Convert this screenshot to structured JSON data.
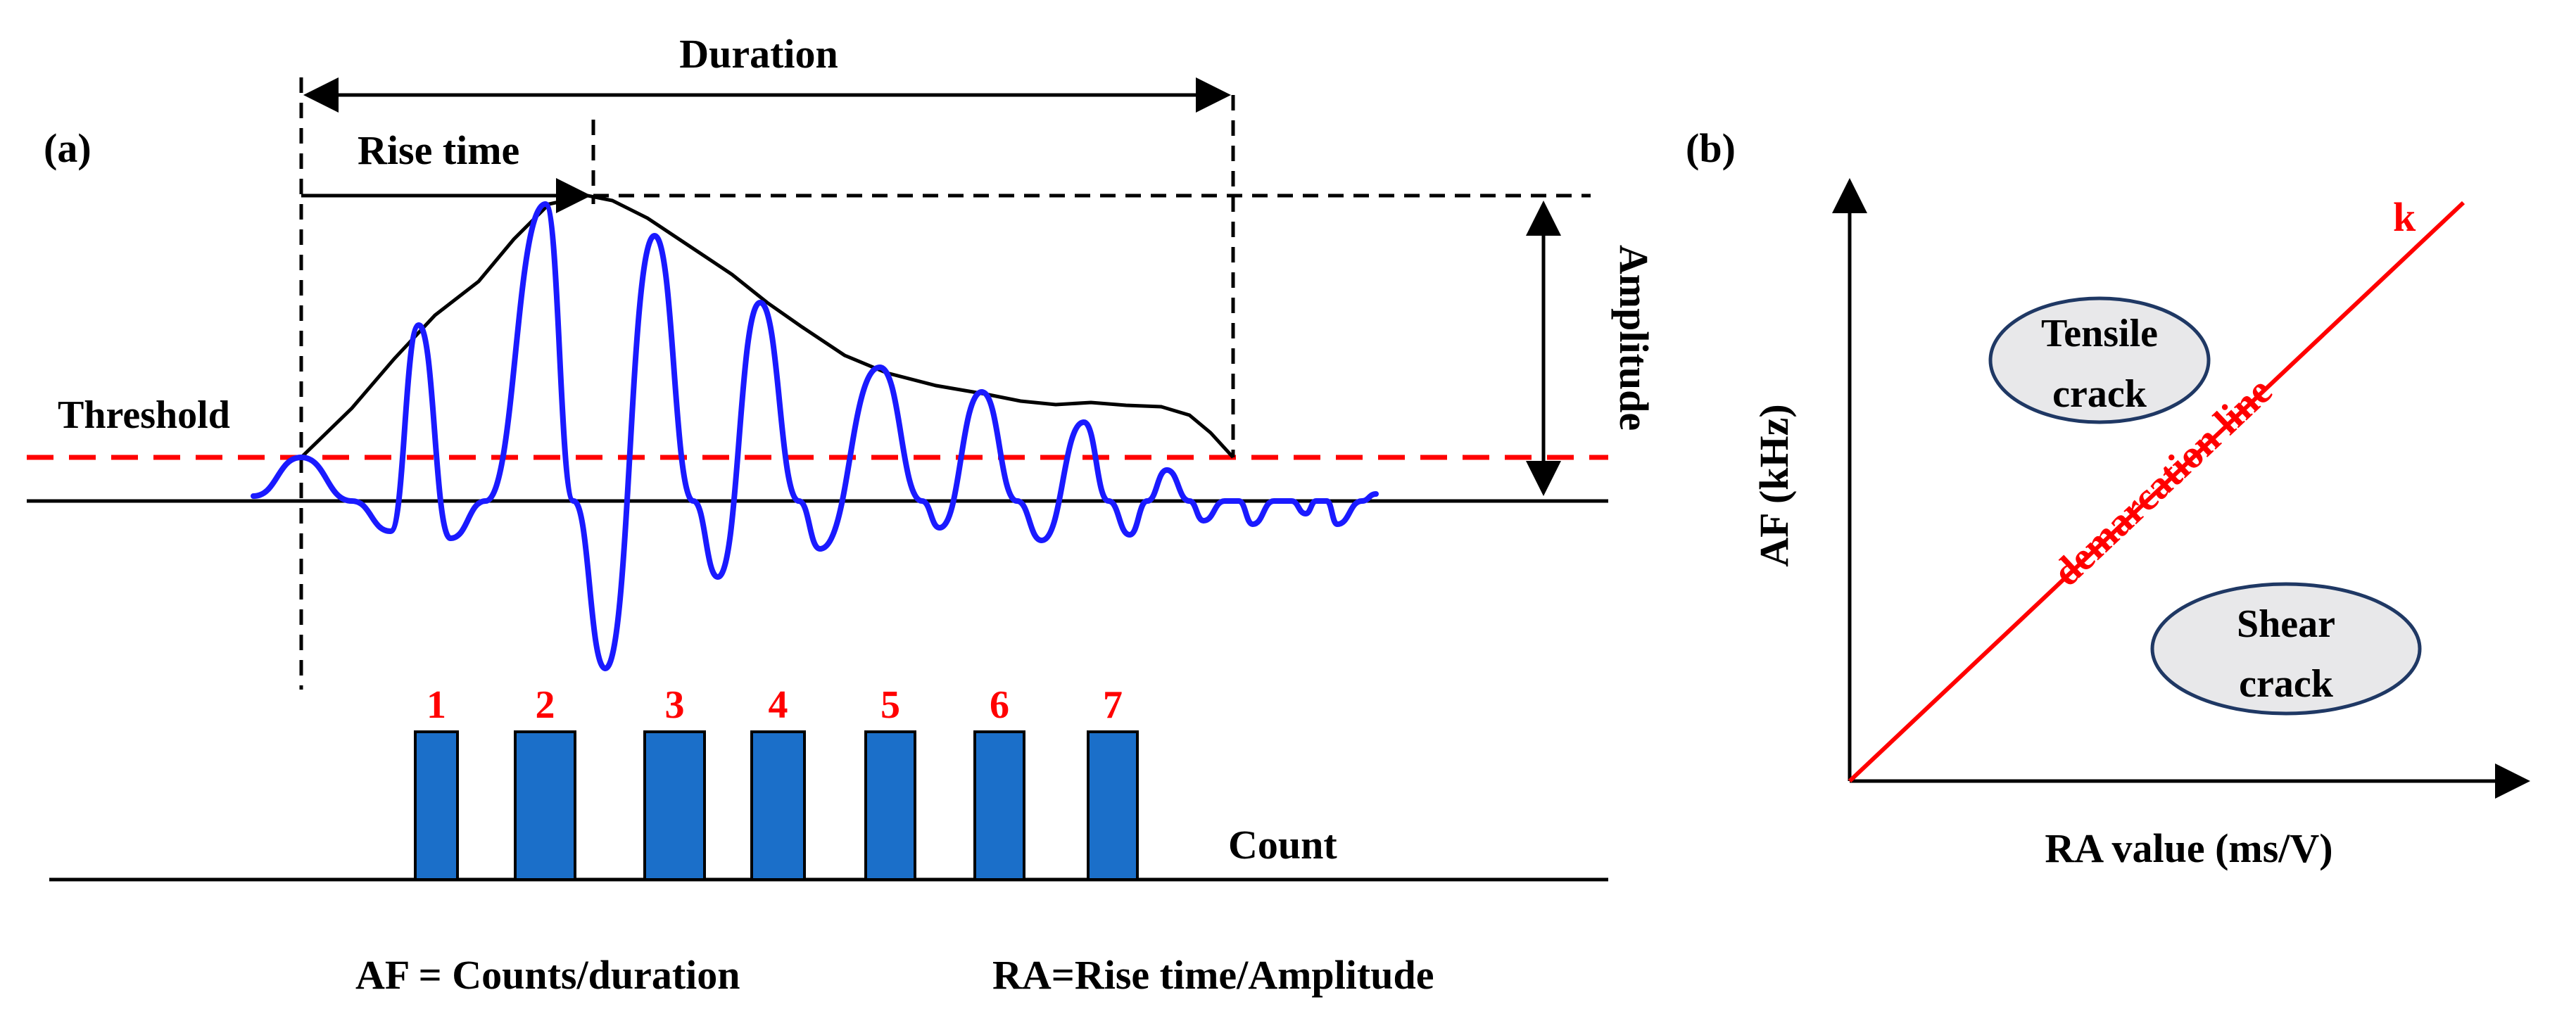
{
  "panel_a": {
    "label": "(a)",
    "duration_label": "Duration",
    "rise_time_label": "Rise time",
    "amplitude_label": "Amplitude",
    "threshold_label": "Threshold",
    "count_label": "Count",
    "count_numbers": [
      "1",
      "2",
      "3",
      "4",
      "5",
      "6",
      "7"
    ],
    "formula_af": "AF = Counts/duration",
    "formula_ra": "RA=Rise time/Amplitude"
  },
  "panel_b": {
    "label": "(b)",
    "y_axis_label": "AF (kHz)",
    "x_axis_label": "RA value (ms/V)",
    "slope_label": "k",
    "line_label": "demarcation line",
    "tensile_lines": [
      "Tensile",
      "crack"
    ],
    "shear_lines": [
      "Shear",
      "crack"
    ]
  },
  "colors": {
    "waveform": "#1a1aff",
    "threshold": "#ff0000",
    "count_bars": "#1b6fc9",
    "ellipse_fill": "#e8e8ea",
    "ellipse_stroke": "#1f3864"
  }
}
